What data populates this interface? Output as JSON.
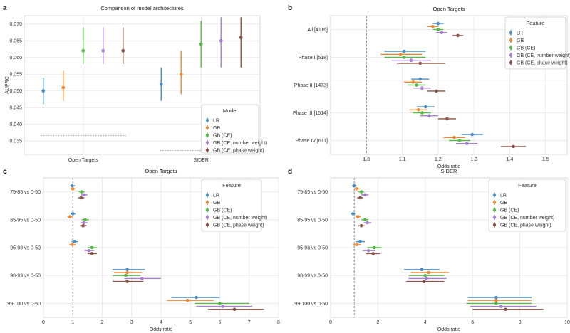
{
  "series_names": [
    "LR",
    "GB",
    "GB (CE)",
    "GB (CE, number weight)",
    "GB (CE, phase weight)"
  ],
  "colors": [
    "#4c8fc4",
    "#ee8a35",
    "#59b84a",
    "#a67fcf",
    "#8a5246"
  ],
  "chart_data": [
    {
      "panel": "a",
      "type": "errorbar",
      "title": "Comparison of model architectures",
      "ylabel": "AUPRC",
      "xlabel": "",
      "categories": [
        "Open Targets",
        "SIDER"
      ],
      "ylim": [
        0.031,
        0.0725
      ],
      "yticks": [
        0.035,
        0.04,
        0.045,
        0.05,
        0.055,
        0.06,
        0.065,
        0.07
      ],
      "legend_title": "Model",
      "series": [
        {
          "name": "LR",
          "values": [
            0.05,
            0.052
          ],
          "low": [
            0.046,
            0.047
          ],
          "high": [
            0.054,
            0.057
          ]
        },
        {
          "name": "GB",
          "values": [
            0.051,
            0.055
          ],
          "low": [
            0.047,
            0.049
          ],
          "high": [
            0.056,
            0.062
          ]
        },
        {
          "name": "GB (CE)",
          "values": [
            0.062,
            0.064
          ],
          "low": [
            0.058,
            0.057
          ],
          "high": [
            0.069,
            0.071
          ]
        },
        {
          "name": "GB (CE, number weight)",
          "values": [
            0.062,
            0.065
          ],
          "low": [
            0.058,
            0.057
          ],
          "high": [
            0.069,
            0.072
          ]
        },
        {
          "name": "GB (CE, phase weight)",
          "values": [
            0.062,
            0.066
          ],
          "low": [
            0.058,
            0.057
          ],
          "high": [
            0.069,
            0.072
          ]
        }
      ],
      "baselines": [
        0.0366,
        0.0322
      ]
    },
    {
      "panel": "b",
      "type": "forest",
      "title": "Open Targets",
      "xlabel": "Odds ratio",
      "xlim": [
        0.9,
        1.56
      ],
      "xticks": [
        1.0,
        1.1,
        1.2,
        1.3,
        1.4,
        1.5
      ],
      "reference": 1.0,
      "legend_title": "Feature",
      "categories": [
        "All [4116]",
        "Phase I [518]",
        "Phase II [1473]",
        "Phase III [1514]",
        "Phase IV [611]"
      ],
      "series": [
        {
          "name": "LR",
          "values": [
            1.2,
            1.105,
            1.15,
            1.165,
            1.295
          ],
          "low": [
            1.185,
            1.05,
            1.125,
            1.14,
            1.265
          ],
          "high": [
            1.215,
            1.165,
            1.175,
            1.19,
            1.325
          ]
        },
        {
          "name": "GB",
          "values": [
            1.185,
            1.095,
            1.13,
            1.145,
            1.245
          ],
          "low": [
            1.17,
            1.04,
            1.105,
            1.12,
            1.215
          ],
          "high": [
            1.2,
            1.155,
            1.155,
            1.17,
            1.275
          ]
        },
        {
          "name": "GB (CE)",
          "values": [
            1.2,
            1.105,
            1.14,
            1.155,
            1.26
          ],
          "low": [
            1.185,
            1.05,
            1.115,
            1.13,
            1.23
          ],
          "high": [
            1.215,
            1.165,
            1.165,
            1.18,
            1.29
          ]
        },
        {
          "name": "GB (CE, number weight)",
          "values": [
            1.21,
            1.125,
            1.155,
            1.175,
            1.28
          ],
          "low": [
            1.195,
            1.07,
            1.13,
            1.15,
            1.25
          ],
          "high": [
            1.225,
            1.18,
            1.18,
            1.2,
            1.31
          ]
        },
        {
          "name": "GB (CE, phase weight)",
          "values": [
            1.255,
            1.15,
            1.195,
            1.225,
            1.41
          ],
          "low": [
            1.24,
            1.085,
            1.17,
            1.2,
            1.375
          ],
          "high": [
            1.27,
            1.22,
            1.22,
            1.25,
            1.445
          ]
        }
      ]
    },
    {
      "panel": "c",
      "type": "forest",
      "title": "Open Targets",
      "xlabel": "Odds ratio",
      "xlim": [
        0,
        8
      ],
      "xticks": [
        0,
        1,
        2,
        3,
        4,
        5,
        6,
        7,
        8
      ],
      "reference": 1.0,
      "legend_title": "Feature",
      "categories": [
        "75-85 vs 0-50",
        "85-95 vs 0-50",
        "95-98 vs 0-50",
        "98-99 vs 0-50",
        "99-100 vs 0-50"
      ],
      "series": [
        {
          "name": "LR",
          "values": [
            0.98,
            1.0,
            1.05,
            2.85,
            5.2
          ],
          "low": [
            0.9,
            0.92,
            0.95,
            2.35,
            4.35
          ],
          "high": [
            1.07,
            1.09,
            1.17,
            3.45,
            6.0
          ]
        },
        {
          "name": "GB",
          "values": [
            1.0,
            0.9,
            0.98,
            2.85,
            4.9
          ],
          "low": [
            0.92,
            0.82,
            0.88,
            2.4,
            4.2
          ],
          "high": [
            1.09,
            0.99,
            1.09,
            3.35,
            5.8
          ]
        },
        {
          "name": "GB (CE)",
          "values": [
            1.3,
            1.42,
            1.65,
            2.8,
            6.0
          ],
          "low": [
            1.2,
            1.3,
            1.5,
            2.35,
            5.15
          ],
          "high": [
            1.4,
            1.55,
            1.82,
            3.3,
            7.0
          ]
        },
        {
          "name": "GB (CE, number weight)",
          "values": [
            1.38,
            1.38,
            1.55,
            3.35,
            6.1
          ],
          "low": [
            1.27,
            1.26,
            1.4,
            2.75,
            5.2
          ],
          "high": [
            1.5,
            1.5,
            1.72,
            4.0,
            7.1
          ]
        },
        {
          "name": "GB (CE, phase weight)",
          "values": [
            1.28,
            1.35,
            1.65,
            2.85,
            6.5
          ],
          "low": [
            1.18,
            1.24,
            1.5,
            2.35,
            5.6
          ],
          "high": [
            1.39,
            1.47,
            1.82,
            3.4,
            7.5
          ]
        }
      ]
    },
    {
      "panel": "d",
      "type": "forest",
      "title": "SIDER",
      "xlabel": "Odds ratio",
      "xlim": [
        0,
        10
      ],
      "xticks": [
        0,
        2,
        4,
        6,
        8,
        10
      ],
      "reference": 1.0,
      "legend_title": "Feature",
      "categories": [
        "75-85 vs 0-50",
        "85-95 vs 0-50",
        "95-98 vs 0-50",
        "98-99 vs 0-50",
        "99-100 vs 0-50"
      ],
      "series": [
        {
          "name": "LR",
          "values": [
            1.0,
            0.95,
            1.25,
            3.85,
            7.0
          ],
          "low": [
            0.9,
            0.86,
            1.05,
            3.1,
            5.8
          ],
          "high": [
            1.1,
            1.05,
            1.45,
            4.6,
            8.5
          ]
        },
        {
          "name": "GB",
          "values": [
            1.1,
            1.15,
            1.1,
            4.15,
            7.0
          ],
          "low": [
            1.0,
            1.05,
            0.95,
            3.4,
            5.8
          ],
          "high": [
            1.22,
            1.27,
            1.28,
            5.0,
            8.5
          ]
        },
        {
          "name": "GB (CE)",
          "values": [
            1.3,
            1.45,
            1.85,
            4.0,
            7.0
          ],
          "low": [
            1.18,
            1.3,
            1.55,
            3.3,
            5.75
          ],
          "high": [
            1.42,
            1.6,
            2.15,
            4.8,
            8.5
          ]
        },
        {
          "name": "GB (CE, number weight)",
          "values": [
            1.45,
            1.55,
            1.6,
            4.05,
            7.2
          ],
          "low": [
            1.3,
            1.4,
            1.35,
            3.3,
            5.9
          ],
          "high": [
            1.6,
            1.72,
            1.9,
            4.9,
            8.7
          ]
        },
        {
          "name": "GB (CE, phase weight)",
          "values": [
            1.25,
            1.3,
            1.8,
            3.95,
            7.4
          ],
          "low": [
            1.12,
            1.18,
            1.5,
            3.2,
            6.0
          ],
          "high": [
            1.38,
            1.43,
            2.1,
            4.8,
            9.0
          ]
        }
      ]
    }
  ]
}
